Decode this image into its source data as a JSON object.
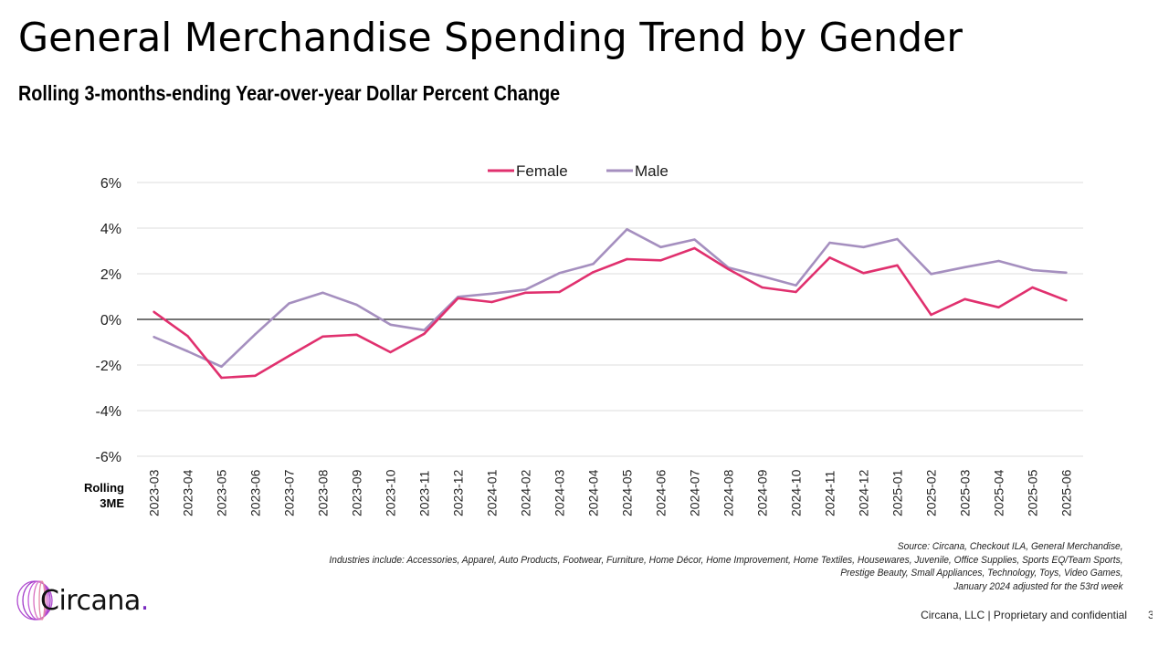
{
  "header": {
    "title": "General Merchandise Spending Trend by Gender",
    "subtitle": "Rolling 3-months-ending Year-over-year Dollar Percent Change"
  },
  "chart_data": {
    "type": "line",
    "title": "General Merchandise Spending Trend by Gender",
    "subtitle": "Rolling 3-months-ending Year-over-year Dollar Percent Change",
    "xlabel": "Rolling 3ME",
    "xlabel_lines": [
      "Rolling",
      "3ME"
    ],
    "ylabel": "",
    "ylim": [
      -6,
      6
    ],
    "yticks": [
      6,
      4,
      2,
      0,
      -2,
      -4,
      -6
    ],
    "ytick_labels": [
      "6%",
      "4%",
      "2%",
      "0%",
      "-2%",
      "-4%",
      "-6%"
    ],
    "grid": true,
    "legend_position": "top-center",
    "categories": [
      "2023-03",
      "2023-04",
      "2023-05",
      "2023-06",
      "2023-07",
      "2023-08",
      "2023-09",
      "2023-10",
      "2023-11",
      "2023-12",
      "2024-01",
      "2024-02",
      "2024-03",
      "2024-04",
      "2024-05",
      "2024-06",
      "2024-07",
      "2024-08",
      "2024-09",
      "2024-10",
      "2024-11",
      "2024-12",
      "2025-01",
      "2025-02",
      "2025-03",
      "2025-04",
      "2025-05",
      "2025-06"
    ],
    "series": [
      {
        "name": "Female",
        "color": "#e0306e",
        "values": [
          0.33,
          -0.73,
          -2.56,
          -2.47,
          -1.6,
          -0.75,
          -0.67,
          -1.44,
          -0.63,
          0.93,
          0.76,
          1.17,
          1.2,
          2.07,
          2.64,
          2.59,
          3.12,
          2.2,
          1.4,
          1.2,
          2.71,
          2.03,
          2.37,
          0.2,
          0.89,
          0.53,
          1.4,
          0.83
        ]
      },
      {
        "name": "Male",
        "color": "#a58fbf",
        "values": [
          -0.77,
          -1.4,
          -2.07,
          -0.65,
          0.7,
          1.17,
          0.64,
          -0.23,
          -0.47,
          0.99,
          1.13,
          1.31,
          2.03,
          2.43,
          3.95,
          3.17,
          3.5,
          2.27,
          1.89,
          1.49,
          3.36,
          3.17,
          3.52,
          1.99,
          2.29,
          2.56,
          2.16,
          2.05
        ]
      }
    ]
  },
  "source_notes": [
    "Source: Circana, Checkout ILA, General Merchandise,",
    "Industries include: Accessories, Apparel, Auto Products, Footwear, Furniture, Home Décor, Home Improvement, Home Textiles, Housewares, Juvenile, Office Supplies, Sports EQ/Team Sports,",
    "Prestige Beauty, Small Appliances, Technology, Toys, Video Games,",
    "January 2024 adjusted for the 53rd week"
  ],
  "logo": {
    "name": "Circana",
    "dot": "."
  },
  "footer": {
    "text": "Circana, LLC |  Proprietary and confidential",
    "page": "3"
  }
}
